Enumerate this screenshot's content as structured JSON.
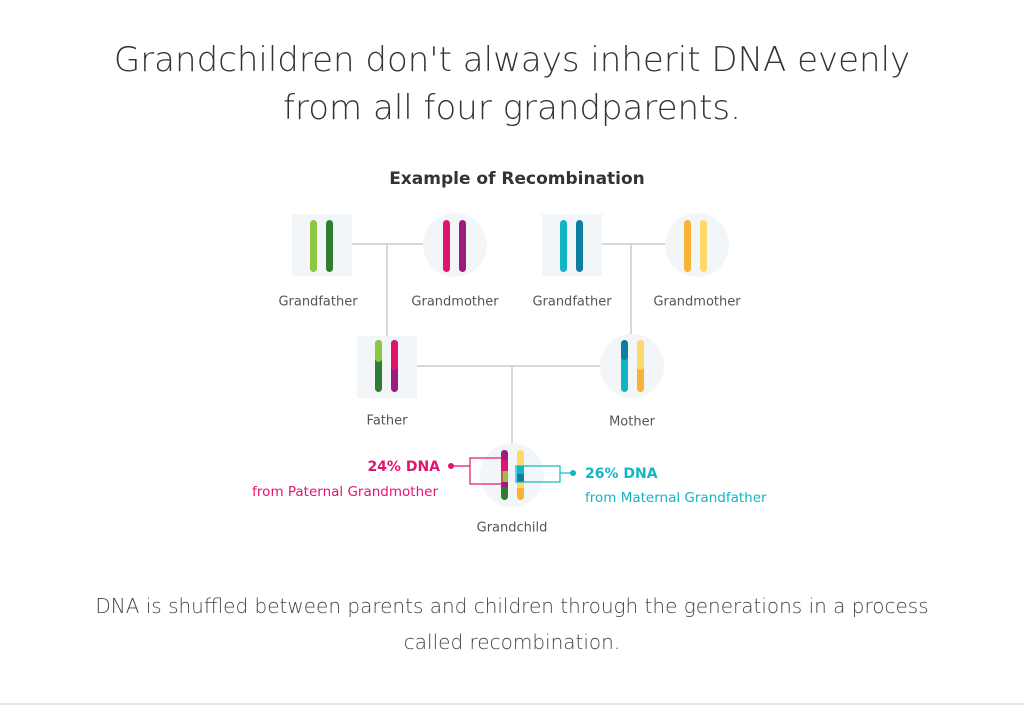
{
  "header": {
    "title": "Grandchildren don't always inherit DNA evenly from all four grandparents."
  },
  "diagram": {
    "title": "Example of Recombination",
    "nodes": [
      {
        "label": "Grandfather"
      },
      {
        "label": "Grandmother"
      },
      {
        "label": "Grandfather"
      },
      {
        "label": "Grandmother"
      },
      {
        "label": "Father"
      },
      {
        "label": "Mother"
      },
      {
        "label": "Grandchild"
      }
    ],
    "annotations": [
      {
        "title": "24% DNA",
        "text": "from Paternal Grandmother"
      },
      {
        "title": "26% DNA",
        "text": "from Maternal Grandfather"
      }
    ]
  },
  "footer": {
    "text": "DNA is shuffled between parents and children through the generations in a process called recombination."
  }
}
